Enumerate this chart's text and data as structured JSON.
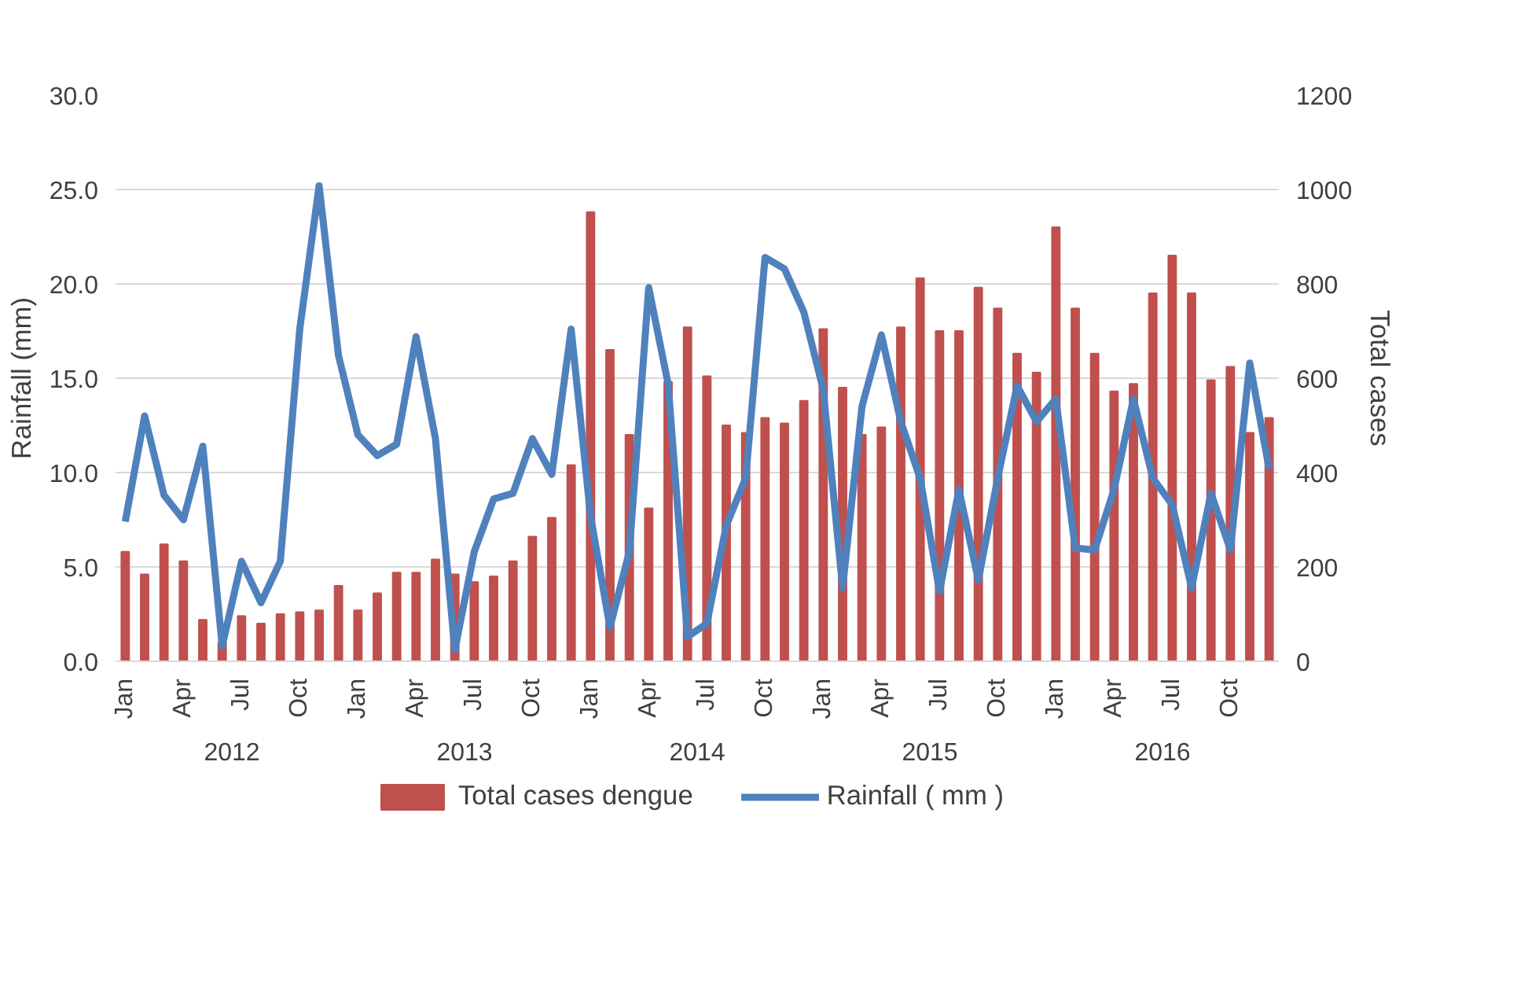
{
  "chart_data": {
    "type": "bar",
    "categories": [
      "Jan",
      null,
      null,
      "Apr",
      null,
      null,
      "Jul",
      null,
      null,
      "Oct",
      null,
      null,
      "Jan",
      null,
      null,
      "Apr",
      null,
      null,
      "Jul",
      null,
      null,
      "Oct",
      null,
      null,
      "Jan",
      null,
      null,
      "Apr",
      null,
      null,
      "Jul",
      null,
      null,
      "Oct",
      null,
      null,
      "Jan",
      null,
      null,
      "Apr",
      null,
      null,
      "Jul",
      null,
      null,
      "Oct",
      null,
      null,
      "Jan",
      null,
      null,
      "Apr",
      null,
      null,
      "Jul",
      null,
      null,
      "Oct",
      null,
      null
    ],
    "annotations": [
      "2012",
      "2013",
      "2014",
      "2015",
      "2016"
    ],
    "ylabel": "Rainfall (mm)",
    "y2label": "Total cases",
    "ylim": [
      0,
      30
    ],
    "yticks": [
      {
        "value": 0,
        "label": "0.0"
      },
      {
        "value": 5,
        "label": "5.0"
      },
      {
        "value": 10,
        "label": "10.0"
      },
      {
        "value": 15,
        "label": "15.0"
      },
      {
        "value": 20,
        "label": "20.0"
      },
      {
        "value": 25,
        "label": "25.0"
      },
      {
        "value": 30,
        "label": "30.0"
      }
    ],
    "y2lim": [
      0,
      1200
    ],
    "y2ticks": [
      0,
      200,
      400,
      600,
      800,
      1000,
      1200
    ],
    "grid": "y",
    "legend": "bottom",
    "series": [
      {
        "name": "Total cases dengue",
        "axis": "y2",
        "color": "#c0504d",
        "values": [
          232,
          184,
          248,
          212,
          88,
          40,
          96,
          80,
          100,
          104,
          108,
          160,
          108,
          144,
          188,
          188,
          216,
          184,
          168,
          180,
          212,
          264,
          304,
          416,
          952,
          660,
          480,
          324,
          592,
          708,
          604,
          500,
          484,
          516,
          504,
          552,
          704,
          580,
          480,
          496,
          708,
          812,
          700,
          700,
          792,
          748,
          652,
          612,
          920,
          748,
          652,
          572,
          588,
          780,
          860,
          780,
          596,
          624,
          484,
          516
        ]
      },
      {
        "name": "Rainfall ( mm )",
        "type": "line",
        "color": "#4f81bd",
        "line_style": "solid",
        "values": [
          7.4,
          13.0,
          8.8,
          7.5,
          11.4,
          0.8,
          5.3,
          3.1,
          5.3,
          17.6,
          25.2,
          16.2,
          12.0,
          10.9,
          11.5,
          17.2,
          11.8,
          0.6,
          5.8,
          8.6,
          8.9,
          11.8,
          9.9,
          17.6,
          7.7,
          1.8,
          5.8,
          19.8,
          14.7,
          1.3,
          2.0,
          7.2,
          9.7,
          21.4,
          20.8,
          18.5,
          14.4,
          3.9,
          13.5,
          17.3,
          12.7,
          9.7,
          3.7,
          9.1,
          4.3,
          9.7,
          14.6,
          12.7,
          13.9,
          6.0,
          5.9,
          9.1,
          13.9,
          9.7,
          8.3,
          3.9,
          8.9,
          5.9,
          15.8,
          10.2
        ]
      }
    ]
  }
}
